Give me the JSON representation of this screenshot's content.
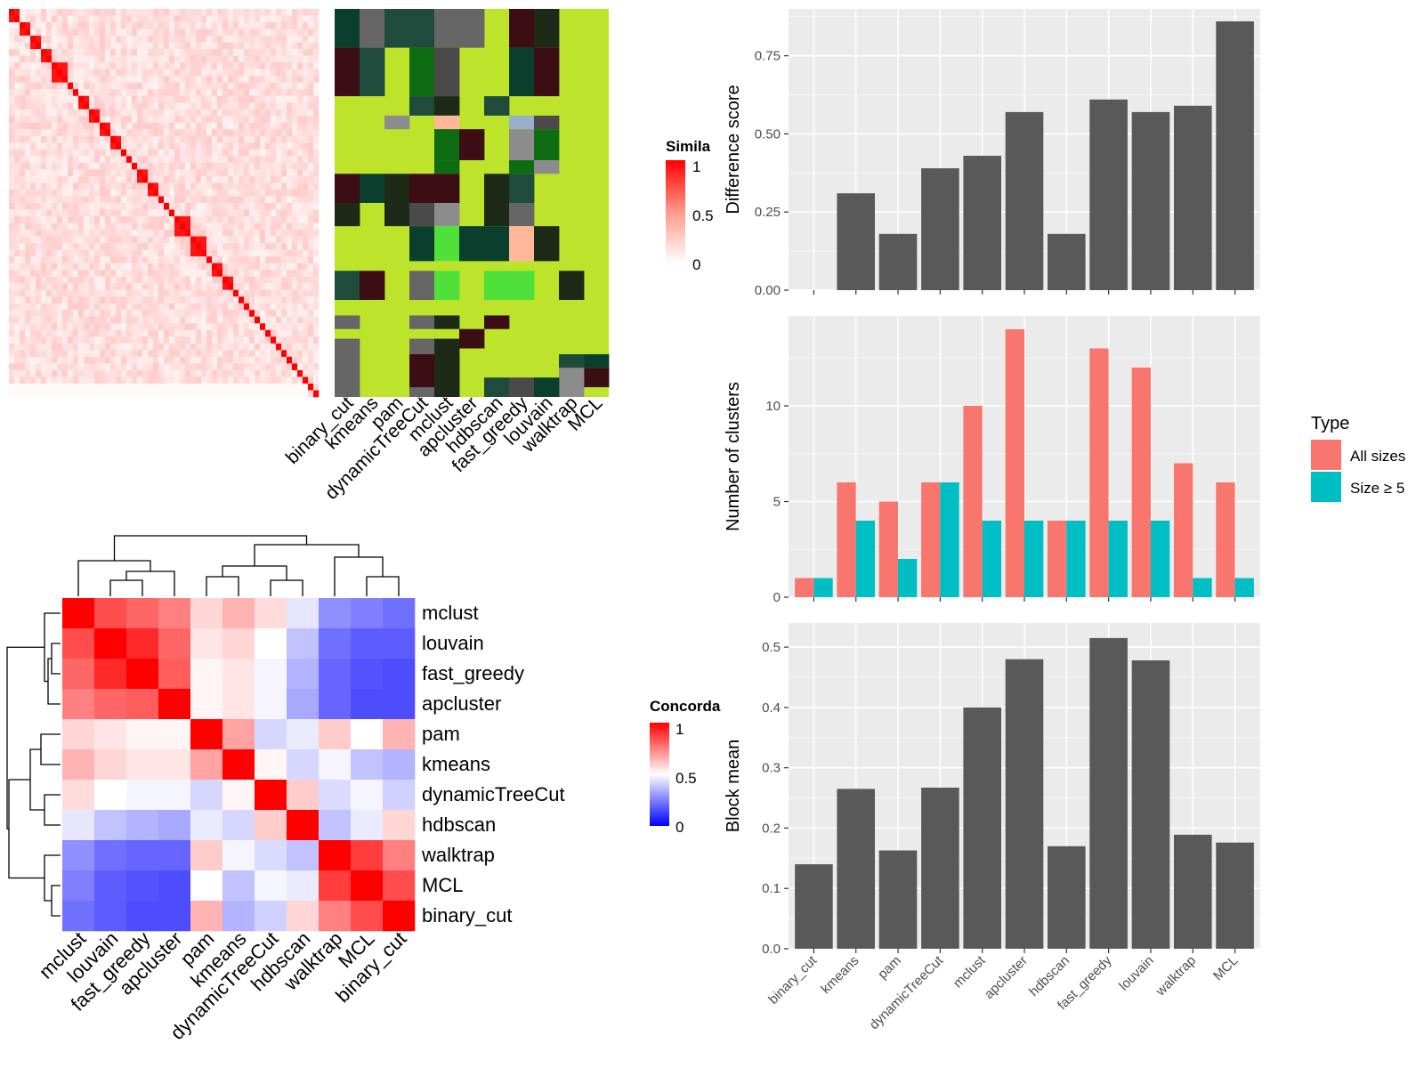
{
  "methods": [
    "binary_cut",
    "kmeans",
    "pam",
    "dynamicTreeCut",
    "mclust",
    "apcluster",
    "hdbscan",
    "fast_greedy",
    "louvain",
    "walktrap",
    "MCL"
  ],
  "colors": {
    "panel_bg": "#ebebeb",
    "grid": "#ffffff",
    "bar_gray": "#595959",
    "all_sizes": "#f8766d",
    "size_ge5": "#00bfc4",
    "heat_red": "#ff0000",
    "heat_blue": "#0000ff",
    "class_green": "#bde42b"
  },
  "similarity_heatmap": {
    "legend_title": "Simila",
    "legend_ticks": [
      "1",
      "0.5",
      "0"
    ],
    "blocks": [
      2,
      2,
      2,
      2,
      3,
      1,
      1,
      2,
      2,
      2,
      2,
      1,
      1,
      1,
      2,
      2,
      1,
      1,
      1,
      3,
      3,
      1,
      2,
      2,
      1,
      1,
      1,
      1,
      1,
      1,
      1,
      1,
      1,
      1,
      1,
      1,
      1,
      1,
      1,
      1
    ],
    "class_columns": [
      "binary_cut",
      "kmeans",
      "pam",
      "dynamicTreeCut",
      "mclust",
      "apcluster",
      "hdbscan",
      "fast_greedy",
      "louvain",
      "walktrap",
      "MCL"
    ]
  },
  "concordance_heatmap": {
    "legend_title": "Concorda",
    "legend_ticks": [
      "1",
      "0.5",
      "0"
    ],
    "order": [
      "mclust",
      "louvain",
      "fast_greedy",
      "apcluster",
      "pam",
      "kmeans",
      "dynamicTreeCut",
      "hdbscan",
      "walktrap",
      "MCL",
      "binary_cut"
    ],
    "matrix": [
      [
        1.0,
        0.85,
        0.8,
        0.75,
        0.58,
        0.65,
        0.57,
        0.45,
        0.28,
        0.25,
        0.22
      ],
      [
        0.85,
        1.0,
        0.92,
        0.8,
        0.55,
        0.58,
        0.5,
        0.38,
        0.22,
        0.18,
        0.18
      ],
      [
        0.8,
        0.92,
        1.0,
        0.82,
        0.52,
        0.55,
        0.48,
        0.35,
        0.2,
        0.16,
        0.15
      ],
      [
        0.75,
        0.8,
        0.82,
        1.0,
        0.52,
        0.55,
        0.48,
        0.33,
        0.2,
        0.15,
        0.15
      ],
      [
        0.58,
        0.55,
        0.52,
        0.52,
        1.0,
        0.68,
        0.42,
        0.46,
        0.6,
        0.5,
        0.65
      ],
      [
        0.65,
        0.58,
        0.55,
        0.55,
        0.68,
        1.0,
        0.52,
        0.42,
        0.48,
        0.38,
        0.35
      ],
      [
        0.57,
        0.5,
        0.48,
        0.48,
        0.42,
        0.52,
        1.0,
        0.6,
        0.43,
        0.48,
        0.41
      ],
      [
        0.45,
        0.38,
        0.35,
        0.33,
        0.46,
        0.42,
        0.6,
        1.0,
        0.38,
        0.46,
        0.58
      ],
      [
        0.28,
        0.22,
        0.2,
        0.2,
        0.6,
        0.48,
        0.43,
        0.38,
        1.0,
        0.88,
        0.75
      ],
      [
        0.25,
        0.18,
        0.16,
        0.15,
        0.5,
        0.38,
        0.48,
        0.46,
        0.88,
        1.0,
        0.85
      ],
      [
        0.22,
        0.18,
        0.15,
        0.15,
        0.65,
        0.35,
        0.41,
        0.58,
        0.75,
        0.85,
        1.0
      ]
    ]
  },
  "chart_data": [
    {
      "type": "bar",
      "title": "",
      "xlabel": "",
      "ylabel": "Difference score",
      "categories": [
        "binary_cut",
        "kmeans",
        "pam",
        "dynamicTreeCut",
        "mclust",
        "apcluster",
        "hdbscan",
        "fast_greedy",
        "louvain",
        "walktrap",
        "MCL"
      ],
      "values": [
        0.0,
        0.31,
        0.18,
        0.39,
        0.43,
        0.57,
        0.18,
        0.61,
        0.57,
        0.59,
        0.86
      ],
      "ylim": [
        0,
        0.9
      ],
      "yticks": [
        0.0,
        0.25,
        0.5,
        0.75
      ],
      "ytick_labels": [
        "0.00",
        "0.25",
        "0.50",
        "0.75"
      ],
      "grid": true
    },
    {
      "type": "bar",
      "title": "",
      "xlabel": "",
      "ylabel": "Number of clusters",
      "categories": [
        "binary_cut",
        "kmeans",
        "pam",
        "dynamicTreeCut",
        "mclust",
        "apcluster",
        "hdbscan",
        "fast_greedy",
        "louvain",
        "walktrap",
        "MCL"
      ],
      "series": [
        {
          "name": "All sizes",
          "values": [
            1,
            6,
            5,
            6,
            10,
            14,
            4,
            13,
            12,
            7,
            6
          ]
        },
        {
          "name": "Size ≥ 5",
          "values": [
            1,
            4,
            2,
            6,
            4,
            4,
            4,
            4,
            4,
            1,
            1
          ]
        }
      ],
      "legend_title": "Type",
      "legend_position": "right",
      "ylim": [
        0,
        14.7
      ],
      "yticks": [
        0,
        5,
        10
      ],
      "ytick_labels": [
        "0",
        "5",
        "10"
      ],
      "grid": true
    },
    {
      "type": "bar",
      "title": "",
      "xlabel": "",
      "ylabel": "Block mean",
      "categories": [
        "binary_cut",
        "kmeans",
        "pam",
        "dynamicTreeCut",
        "mclust",
        "apcluster",
        "hdbscan",
        "fast_greedy",
        "louvain",
        "walktrap",
        "MCL"
      ],
      "values": [
        0.14,
        0.265,
        0.163,
        0.267,
        0.4,
        0.48,
        0.17,
        0.515,
        0.478,
        0.189,
        0.176
      ],
      "ylim": [
        0,
        0.54
      ],
      "yticks": [
        0.0,
        0.1,
        0.2,
        0.3,
        0.4,
        0.5
      ],
      "ytick_labels": [
        "0.0",
        "0.1",
        "0.2",
        "0.3",
        "0.4",
        "0.5"
      ],
      "grid": true
    }
  ]
}
